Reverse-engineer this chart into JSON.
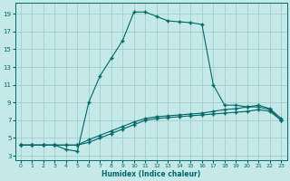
{
  "xlabel": "Humidex (Indice chaleur)",
  "bg_color": "#c5e8e8",
  "grid_color": "#9fcece",
  "line_color": "#006868",
  "xlim": [
    -0.5,
    23.5
  ],
  "ylim": [
    2.5,
    20.2
  ],
  "xticks": [
    0,
    1,
    2,
    3,
    4,
    5,
    6,
    7,
    8,
    9,
    10,
    11,
    12,
    13,
    14,
    15,
    16,
    17,
    18,
    19,
    20,
    21,
    22,
    23
  ],
  "yticks": [
    3,
    5,
    7,
    9,
    11,
    13,
    15,
    17,
    19
  ],
  "curve_x": [
    0,
    1,
    2,
    3,
    4,
    5,
    6,
    7,
    8,
    9,
    10,
    11,
    12,
    13,
    14,
    15,
    16,
    17,
    18,
    19,
    20,
    21,
    22,
    23
  ],
  "curve_y": [
    4.2,
    4.2,
    4.2,
    4.2,
    3.7,
    3.5,
    9,
    12,
    14,
    16,
    19.2,
    19.2,
    18.7,
    18.2,
    18.1,
    18.0,
    17.8,
    11.0,
    8.7,
    8.7,
    8.5,
    8.5,
    8.2,
    7.0
  ],
  "line1_x": [
    0,
    1,
    2,
    3,
    4,
    5,
    6,
    7,
    8,
    9,
    10,
    11,
    12,
    13,
    14,
    15,
    16,
    17,
    18,
    19,
    20,
    21,
    22,
    23
  ],
  "line1_y": [
    4.2,
    4.2,
    4.2,
    4.2,
    4.2,
    4.2,
    4.5,
    5.0,
    5.5,
    6.0,
    6.5,
    7.0,
    7.2,
    7.3,
    7.4,
    7.5,
    7.6,
    7.7,
    7.8,
    7.9,
    8.0,
    8.2,
    8.0,
    7.0
  ],
  "line2_x": [
    0,
    1,
    2,
    3,
    4,
    5,
    6,
    7,
    8,
    9,
    10,
    11,
    12,
    13,
    14,
    15,
    16,
    17,
    18,
    19,
    20,
    21,
    22,
    23
  ],
  "line2_y": [
    4.2,
    4.2,
    4.2,
    4.2,
    4.2,
    4.2,
    4.8,
    5.3,
    5.8,
    6.3,
    6.8,
    7.2,
    7.4,
    7.5,
    7.6,
    7.7,
    7.8,
    8.0,
    8.2,
    8.3,
    8.5,
    8.7,
    8.3,
    7.2
  ]
}
